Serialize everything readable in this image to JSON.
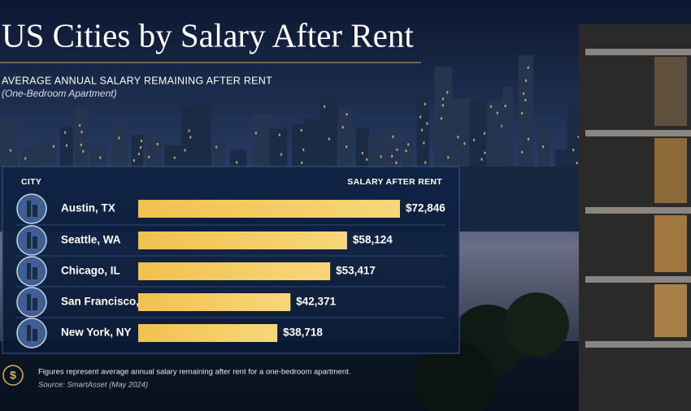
{
  "chart_data": {
    "type": "bar",
    "orientation": "horizontal",
    "title": "US Cities by Salary After Rent",
    "subtitle": "AVERAGE ANNUAL SALARY REMAINING AFTER RENT",
    "subtitle_note": "(One-Bedroom Apartment)",
    "category_header": "CITY",
    "value_header": "SALARY AFTER RENT",
    "categories": [
      "Austin, TX",
      "Seattle, WA",
      "Chicago, IL",
      "San Francisco, CA",
      "New York, NY"
    ],
    "values": [
      72846,
      58124,
      53417,
      42371,
      38718
    ],
    "value_labels": [
      "$72,846",
      "$58,124",
      "$53,417",
      "$42,371",
      "$38,718"
    ],
    "color": "#f2c14e",
    "note": "Figures represent average annual salary remaining after rent for a one-bedroom apartment.",
    "source": "Source: SmartAsset (May 2024)"
  }
}
